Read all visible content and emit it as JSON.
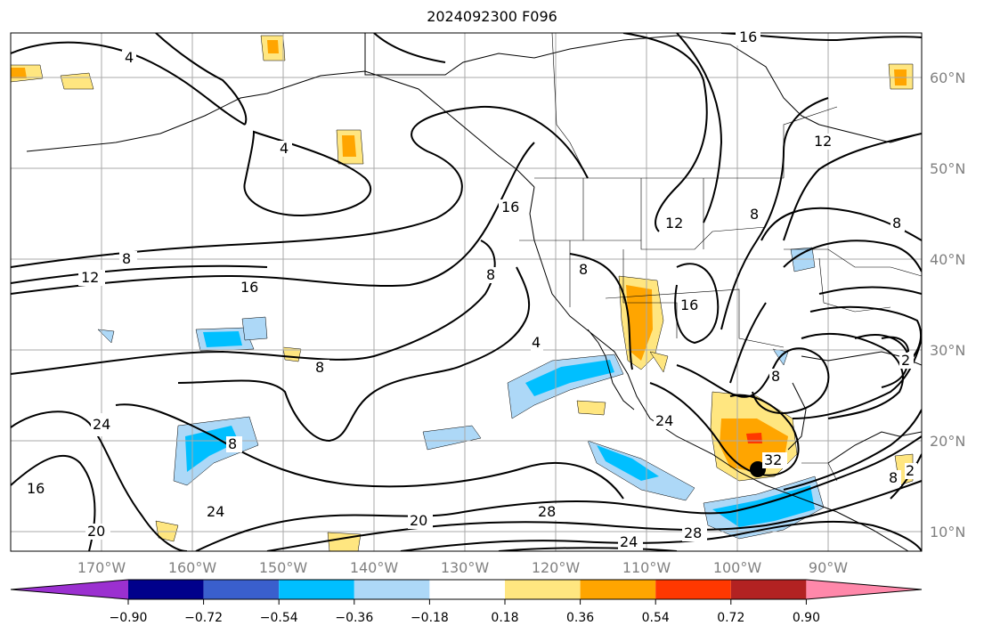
{
  "title": "2024092300 F096",
  "lat_ticks": [
    "60°N",
    "50°N",
    "40°N",
    "30°N",
    "20°N",
    "10°N"
  ],
  "lon_ticks": [
    "170°W",
    "160°W",
    "150°W",
    "140°W",
    "130°W",
    "120°W",
    "110°W",
    "100°W",
    "90°W"
  ],
  "colorbar": {
    "ticks": [
      "−0.90",
      "−0.72",
      "−0.54",
      "−0.36",
      "−0.18",
      "0.18",
      "0.36",
      "0.54",
      "0.72",
      "0.90"
    ],
    "colors": [
      "#9b30d0",
      "#00008b",
      "#3a5fcd",
      "#00bfff",
      "#add8f7",
      "#ffffff",
      "#ffe680",
      "#ffa500",
      "#ff3800",
      "#b22222",
      "#ff88aa"
    ]
  },
  "contour_labels": [
    "4",
    "4",
    "16",
    "12",
    "8",
    "12",
    "16",
    "8",
    "16",
    "8",
    "8",
    "12",
    "16",
    "8",
    "24",
    "8",
    "24",
    "16",
    "20",
    "24",
    "20",
    "28",
    "24",
    "28",
    "32",
    "2",
    "8",
    "8",
    "4",
    "8",
    "2"
  ],
  "colors": {
    "coast": "#000000",
    "grid": "#aaaaaa",
    "contour": "#000000",
    "marker": "#000000"
  }
}
